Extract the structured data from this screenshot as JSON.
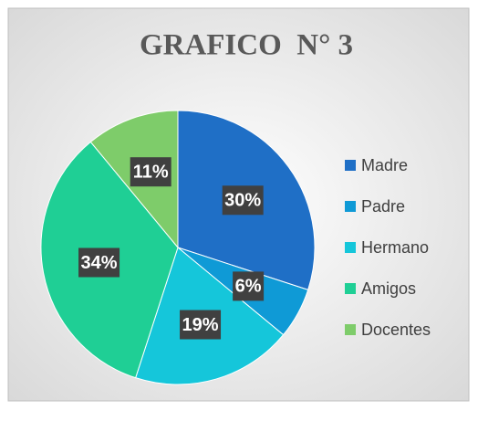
{
  "chart_data": {
    "type": "pie",
    "title": "GRAFICO  N° 3",
    "categories": [
      "Madre",
      "Padre",
      "Hermano",
      "Amigos",
      "Docentes"
    ],
    "values": [
      30,
      6,
      19,
      34,
      11
    ],
    "value_labels": [
      "30%",
      "6%",
      "19%",
      "34%",
      "11%"
    ],
    "colors": [
      "#1f6fc6",
      "#0f9ad6",
      "#15c6da",
      "#1fcf95",
      "#7ecc6a"
    ],
    "legend": "right"
  }
}
